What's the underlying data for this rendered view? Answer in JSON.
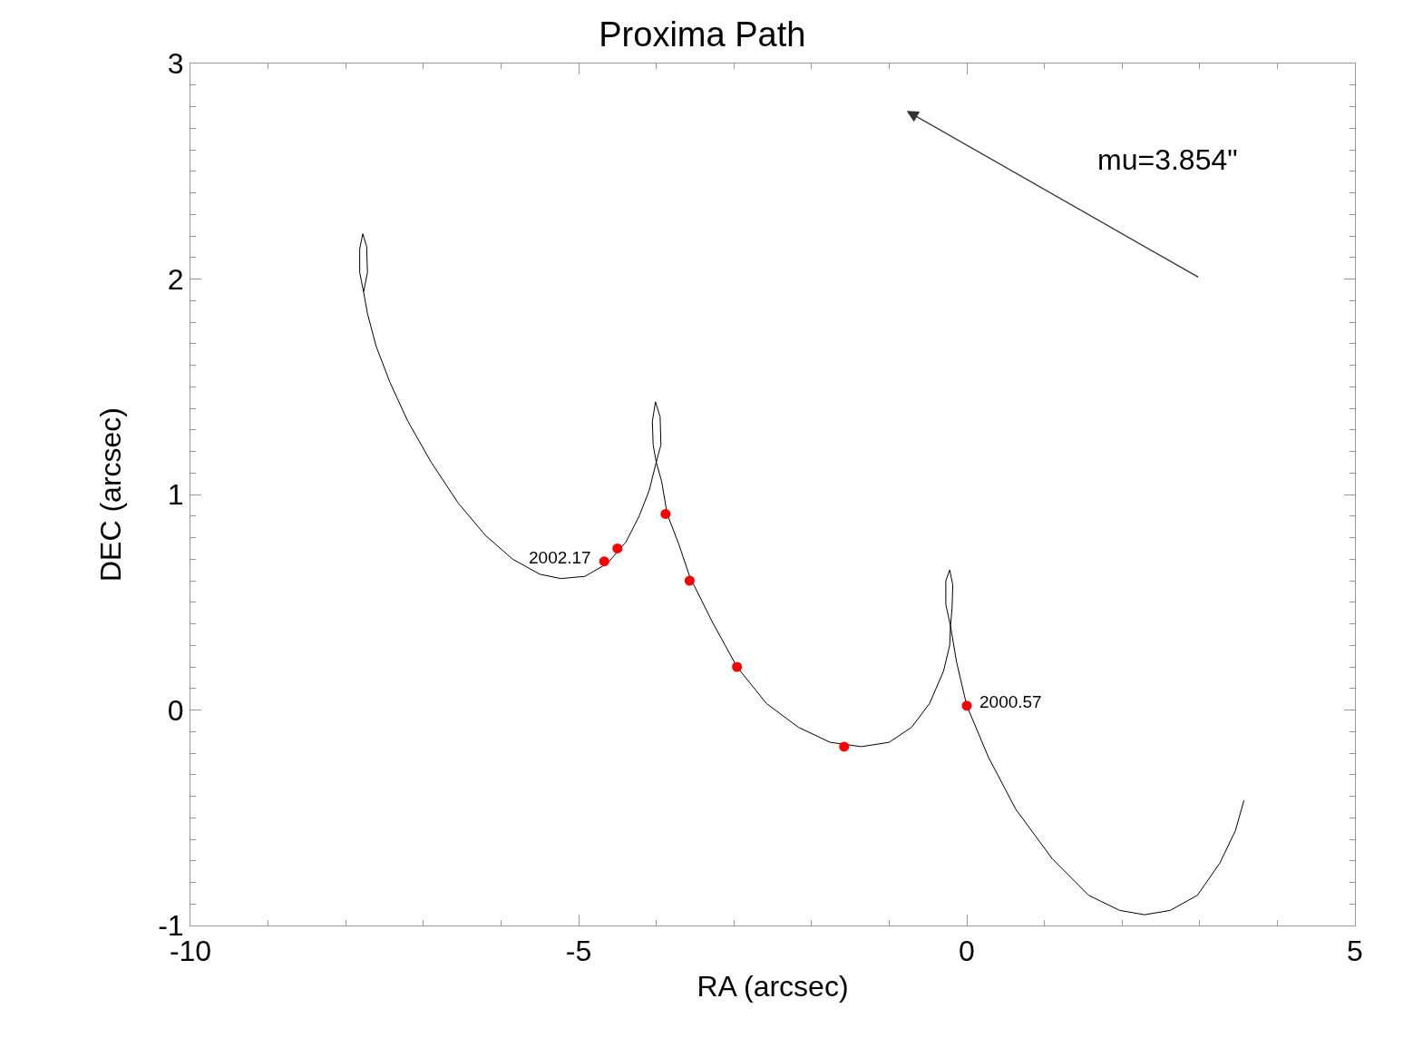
{
  "chart_data": {
    "type": "line",
    "title": "Proxima Path",
    "xlabel": "RA (arcsec)",
    "ylabel": "DEC (arcsec)",
    "xlim": [
      -10,
      5
    ],
    "xticks": [
      -10,
      -5,
      0,
      5
    ],
    "ylim": [
      -1,
      3
    ],
    "yticks": [
      -1,
      0,
      1,
      2,
      3
    ],
    "series": [
      {
        "color": "#000000",
        "marker": "none",
        "line_style": "solid",
        "x": [
          -7.77,
          -7.82,
          -7.82,
          -7.78,
          -7.73,
          -7.72,
          -7.77,
          -7.72,
          -7.61,
          -7.43,
          -7.2,
          -6.9,
          -6.55,
          -6.2,
          -5.85,
          -5.5,
          -5.23,
          -4.92,
          -4.63,
          -4.39,
          -4.22,
          -4.09,
          -4.0,
          -4.04,
          -4.05,
          -4.01,
          -3.95,
          -3.94,
          -4.0,
          -3.93,
          -3.86,
          -3.71,
          -3.57,
          -3.28,
          -2.96,
          -2.58,
          -2.17,
          -1.76,
          -1.36,
          -1.0,
          -0.71,
          -0.48,
          -0.3,
          -0.22,
          -0.21,
          -0.27,
          -0.27,
          -0.22,
          -0.18,
          -0.19,
          -0.21,
          -0.13,
          0.0,
          0.28,
          0.63,
          1.1,
          1.57,
          1.97,
          2.29,
          2.62,
          2.97,
          3.26,
          3.46,
          3.57
        ],
        "values": [
          1.94,
          2.03,
          2.14,
          2.21,
          2.15,
          2.03,
          1.94,
          1.84,
          1.69,
          1.52,
          1.34,
          1.15,
          0.96,
          0.81,
          0.7,
          0.63,
          0.61,
          0.62,
          0.68,
          0.78,
          0.9,
          1.02,
          1.15,
          1.23,
          1.34,
          1.43,
          1.36,
          1.23,
          1.15,
          1.06,
          0.91,
          0.77,
          0.62,
          0.41,
          0.2,
          0.03,
          -0.08,
          -0.15,
          -0.17,
          -0.15,
          -0.08,
          0.03,
          0.18,
          0.3,
          0.39,
          0.49,
          0.6,
          0.65,
          0.58,
          0.47,
          0.39,
          0.22,
          0.02,
          -0.22,
          -0.46,
          -0.69,
          -0.86,
          -0.93,
          -0.95,
          -0.93,
          -0.86,
          -0.71,
          -0.56,
          -0.42
        ]
      },
      {
        "type": "scatter",
        "color": "#ff0000",
        "marker": "circle",
        "x": [
          -4.67,
          -4.5,
          -3.88,
          -3.57,
          -2.96,
          -1.58,
          0.0
        ],
        "values": [
          0.69,
          0.75,
          0.91,
          0.6,
          0.2,
          -0.17,
          0.02
        ]
      }
    ],
    "annotations": [
      {
        "text": "2002.17",
        "x": -4.67,
        "y": 0.69
      },
      {
        "text": "2000.57",
        "x": 0.0,
        "y": 0.02
      },
      "mu=3.854\""
    ]
  }
}
